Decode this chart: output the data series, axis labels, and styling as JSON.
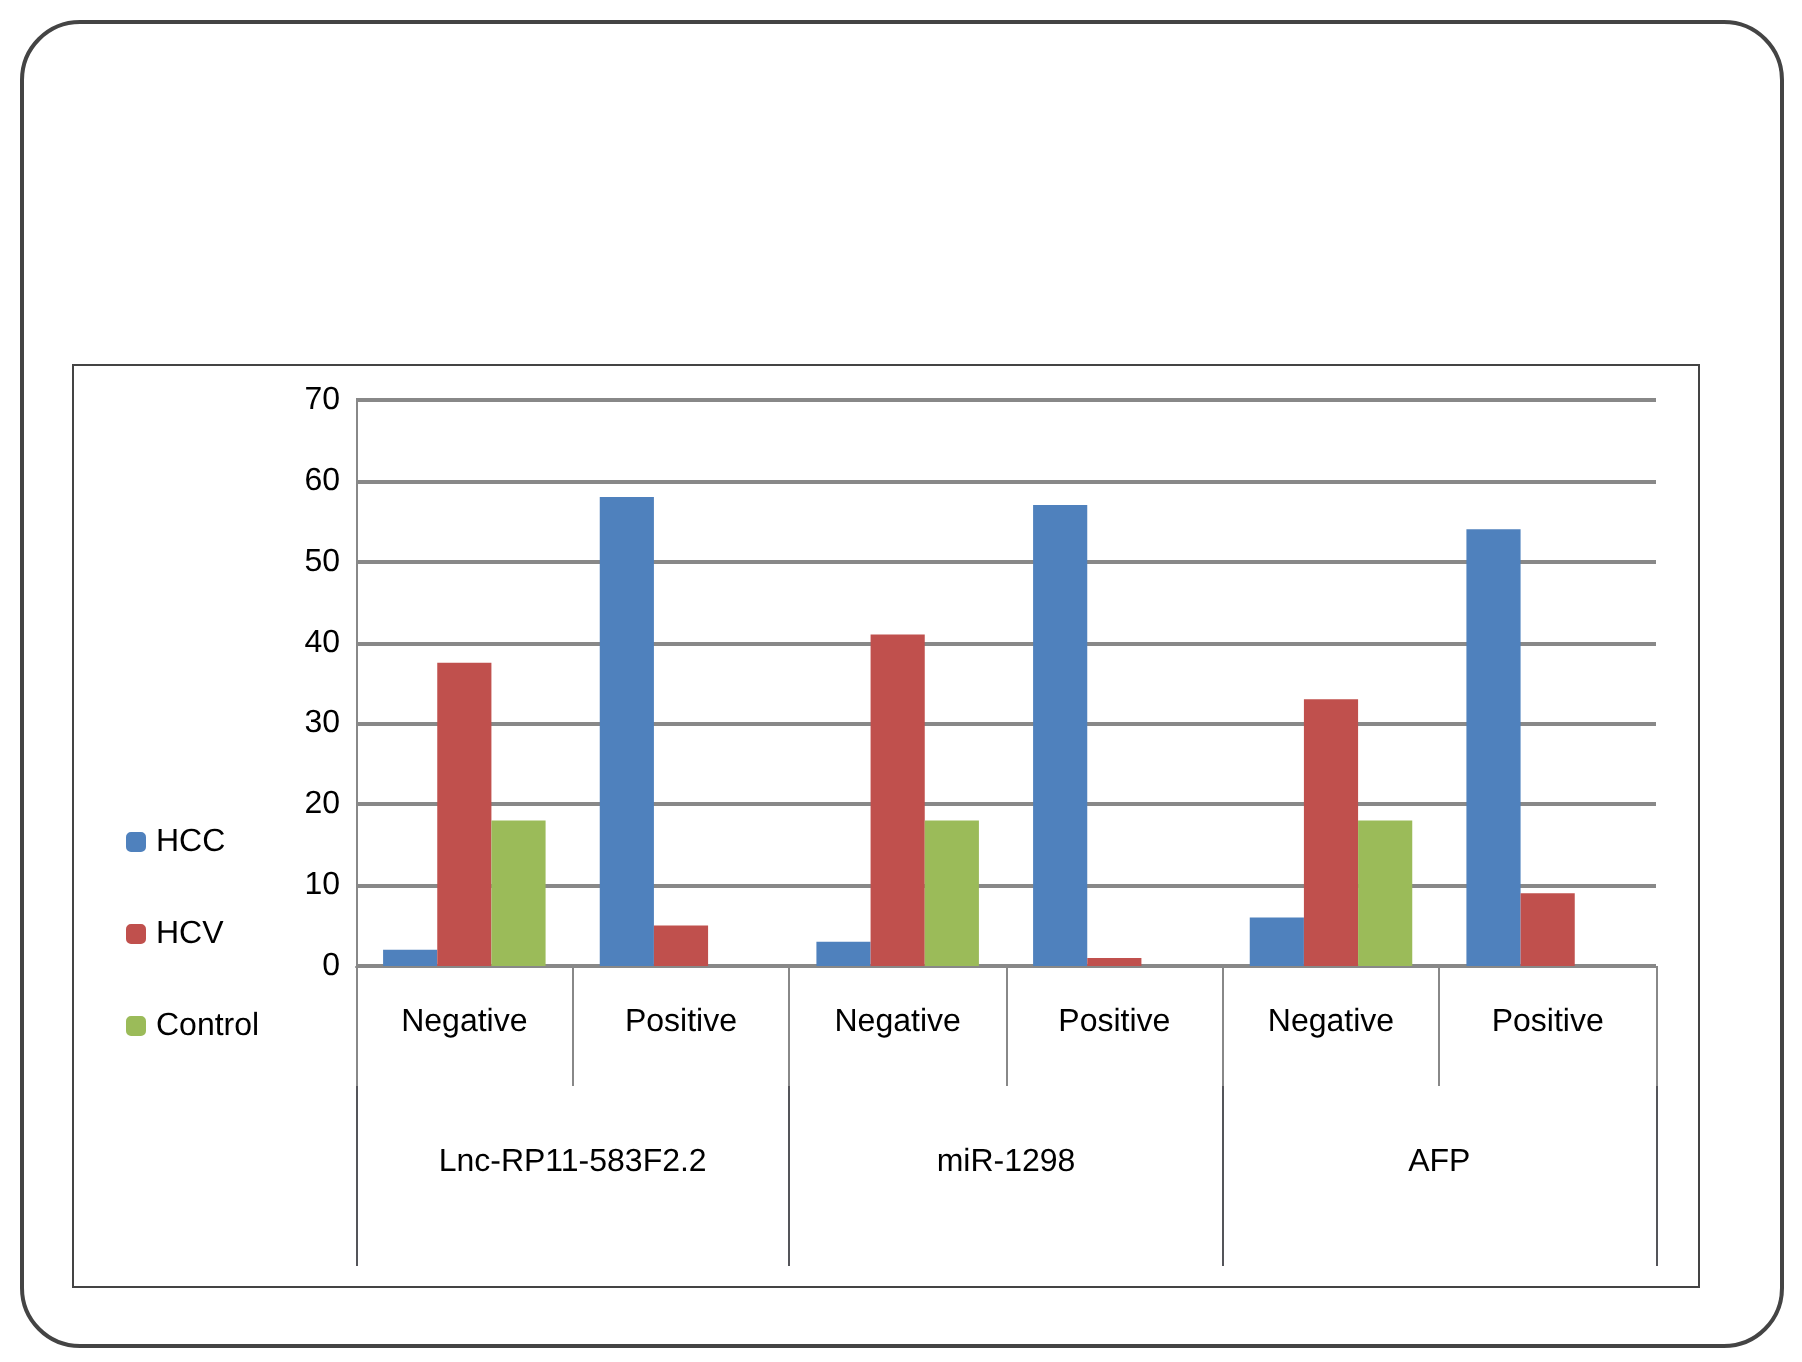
{
  "chart_data": {
    "type": "bar",
    "categories": [
      "Negative",
      "Positive",
      "Negative",
      "Positive",
      "Negative",
      "Positive"
    ],
    "series": [
      {
        "name": "HCC",
        "color": "#4f81bd",
        "values": [
          2,
          58,
          3,
          57,
          6,
          54
        ]
      },
      {
        "name": "HCV",
        "color": "#c0504d",
        "values": [
          37.5,
          5,
          41,
          1,
          33,
          9
        ]
      },
      {
        "name": "Control",
        "color": "#9bbb59",
        "values": [
          18,
          0,
          18,
          0,
          18,
          0
        ]
      }
    ],
    "annotations": [
      "Lnc-RP11-583F2.2",
      "miR-1298",
      "AFP"
    ],
    "ylim": [
      0,
      70
    ],
    "yticks": [
      0,
      10,
      20,
      30,
      40,
      50,
      60,
      70
    ],
    "grid": "y",
    "legend": "left"
  }
}
